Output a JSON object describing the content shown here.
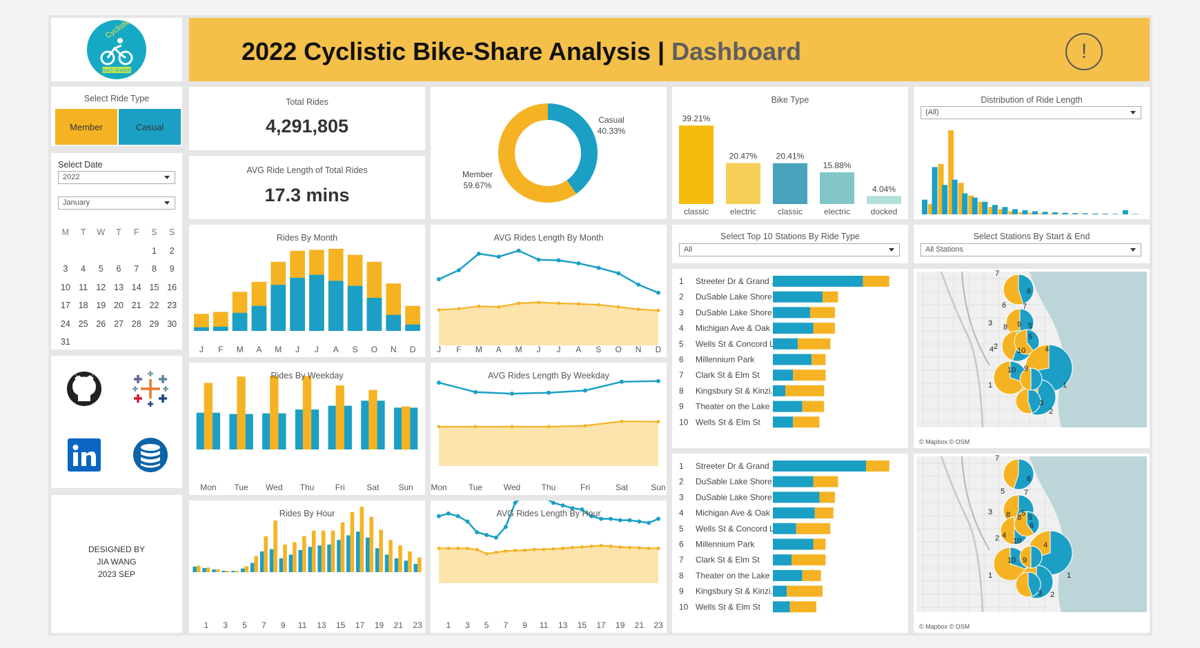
{
  "header": {
    "title": "2022 Cyclistic Bike-Share Analysis",
    "separator": "|",
    "subtitle": "Dashboard",
    "info_glyph": "!",
    "logo_text_top": "Cyclistic",
    "logo_text_bottom": "BIKE-SHARE",
    "logo_icon": "bicycle-icon"
  },
  "colors": {
    "member": "#f5b324",
    "casual": "#1b9fc5",
    "header_bg": "#f5c04a",
    "area_fill": "#fde4ad"
  },
  "filters": {
    "ride_type_title": "Select Ride Type",
    "member_label": "Member",
    "casual_label": "Casual",
    "date_title": "Select Date",
    "year_value": "2022",
    "month_value": "January",
    "bike_length_filter": "(All)",
    "stations_ride_type_title": "Select Top 10 Stations By Ride Type",
    "stations_ride_type_value": "All",
    "stations_start_end_title": "Select Stations By Start & End",
    "stations_start_end_value": "All Stations"
  },
  "calendar": {
    "weekdays": [
      "M",
      "T",
      "W",
      "T",
      "F",
      "S",
      "S"
    ],
    "weeks": [
      [
        "",
        "",
        "",
        "",
        "",
        "1",
        "2"
      ],
      [
        "3",
        "4",
        "5",
        "6",
        "7",
        "8",
        "9"
      ],
      [
        "10",
        "11",
        "12",
        "13",
        "14",
        "15",
        "16"
      ],
      [
        "17",
        "18",
        "19",
        "20",
        "21",
        "22",
        "23"
      ],
      [
        "24",
        "25",
        "26",
        "27",
        "28",
        "29",
        "30"
      ],
      [
        "31",
        "",
        "",
        "",
        "",
        "",
        ""
      ]
    ]
  },
  "kpis": {
    "total_rides_label": "Total Rides",
    "total_rides_value": "4,291,805",
    "avg_length_label": "AVG Ride Length of Total Rides",
    "avg_length_value": "17.3 mins"
  },
  "social_icons": [
    "github-icon",
    "tableau-icon",
    "linkedin-icon",
    "database-icon"
  ],
  "credits": {
    "line1": "DESIGNED BY",
    "line2": "JIA WANG",
    "line3": "2023 SEP"
  },
  "chart_data": [
    {
      "id": "split",
      "type": "pie",
      "title": "",
      "slices": [
        {
          "name": "Casual",
          "value": 40.33,
          "label": "40.33%"
        },
        {
          "name": "Member",
          "value": 59.67,
          "label": "59.67%"
        }
      ]
    },
    {
      "id": "bike_type",
      "type": "bar",
      "title": "Bike Type",
      "categories": [
        "classic",
        "electric",
        "classic",
        "electric",
        "docked"
      ],
      "values": [
        39.21,
        20.47,
        20.41,
        15.88,
        4.04
      ],
      "labels": [
        "39.21%",
        "20.47%",
        "20.41%",
        "15.88%",
        "4.04%"
      ],
      "colors": [
        "#f5bb0d",
        "#f5cf57",
        "#4aa3bd",
        "#82c6c8",
        "#b3dfdc"
      ]
    },
    {
      "id": "ride_length_dist",
      "type": "bar",
      "title": "Distribution of Ride Length",
      "member": [
        10,
        48,
        80,
        30,
        18,
        12,
        7,
        5,
        3,
        2,
        1.5,
        1,
        0.6,
        0.5,
        0.4,
        0.3,
        0.2,
        0.2,
        0.2,
        0.1,
        0.1,
        0.1
      ],
      "casual": [
        14,
        45,
        28,
        33,
        20,
        16,
        12,
        9,
        7,
        5,
        4,
        3,
        2.5,
        2,
        1.5,
        1.2,
        1,
        0.8,
        0.7,
        0.5,
        4,
        0.4
      ]
    },
    {
      "id": "rides_month",
      "type": "bar",
      "title": "Rides By Month",
      "categories": [
        "J",
        "F",
        "M",
        "A",
        "M",
        "J",
        "J",
        "A",
        "S",
        "O",
        "N",
        "D"
      ],
      "series": [
        {
          "name": "Casual",
          "values": [
            18,
            21,
            90,
            125,
            230,
            265,
            280,
            250,
            225,
            165,
            80,
            32
          ]
        },
        {
          "name": "Member",
          "values": [
            85,
            95,
            195,
            245,
            345,
            400,
            405,
            410,
            380,
            345,
            237,
            125
          ]
        }
      ],
      "ylim": [
        0,
        420
      ]
    },
    {
      "id": "avg_month",
      "type": "line",
      "title": "AVG Rides Length By Month",
      "categories": [
        "J",
        "F",
        "M",
        "A",
        "M",
        "J",
        "J",
        "A",
        "S",
        "O",
        "N",
        "D"
      ],
      "series": [
        {
          "name": "Casual",
          "values": [
            22,
            25,
            30.5,
            29.5,
            31.5,
            28.5,
            28.3,
            27.3,
            25.8,
            24,
            20.2,
            17.5
          ]
        },
        {
          "name": "Member",
          "values": [
            11.8,
            12.2,
            13,
            12.8,
            14,
            14.3,
            14,
            13.8,
            13.5,
            12.8,
            12,
            11.6
          ]
        }
      ],
      "ylim": [
        0,
        36
      ]
    },
    {
      "id": "rides_weekday",
      "type": "bar",
      "title": "Rides By Weekday",
      "categories": [
        "Mon",
        "Tue",
        "Wed",
        "Thu",
        "Fri",
        "Sat",
        "Sun"
      ],
      "series": [
        {
          "name": "Casual",
          "values": [
            290,
            280,
            285,
            315,
            345,
            385,
            330
          ]
        },
        {
          "name": "Member",
          "values": [
            525,
            575,
            580,
            580,
            505,
            470,
            340
          ]
        }
      ],
      "ylim": [
        0,
        620
      ]
    },
    {
      "id": "avg_weekday",
      "type": "line",
      "title": "AVG Rides Length By Weekday",
      "categories": [
        "Mon",
        "Tue",
        "Wed",
        "Thu",
        "Fri",
        "Sat",
        "Sun"
      ],
      "series": [
        {
          "name": "Casual",
          "values": [
            26.5,
            23.5,
            23,
            23.3,
            24,
            26.8,
            27
          ]
        },
        {
          "name": "Member",
          "values": [
            12.5,
            12.5,
            12.5,
            12.5,
            12.8,
            14.2,
            14.1
          ]
        }
      ],
      "ylim": [
        0,
        32
      ]
    },
    {
      "id": "rides_hour",
      "type": "bar",
      "title": "Rides By Hour",
      "categories": [
        "0",
        "1",
        "2",
        "3",
        "4",
        "5",
        "6",
        "7",
        "8",
        "9",
        "10",
        "11",
        "12",
        "13",
        "14",
        "15",
        "16",
        "17",
        "18",
        "19",
        "20",
        "21",
        "22",
        "23"
      ],
      "tick_labels": [
        "1",
        "3",
        "5",
        "7",
        "9",
        "11",
        "13",
        "15",
        "17",
        "19",
        "21",
        "23"
      ],
      "series": [
        {
          "name": "Casual",
          "values": [
            12,
            9,
            6,
            3,
            3,
            8,
            20,
            45,
            50,
            30,
            38,
            48,
            55,
            58,
            60,
            70,
            80,
            88,
            75,
            52,
            38,
            30,
            25,
            18
          ]
        },
        {
          "name": "Member",
          "values": [
            14,
            10,
            6,
            3,
            3,
            13,
            35,
            78,
            112,
            60,
            65,
            78,
            90,
            90,
            90,
            108,
            130,
            142,
            120,
            92,
            70,
            58,
            45,
            32
          ]
        }
      ],
      "ylim": [
        0,
        160
      ]
    },
    {
      "id": "avg_hour",
      "type": "line",
      "title": "AVG Rides Length By Hour",
      "categories": [
        "0",
        "1",
        "2",
        "3",
        "4",
        "5",
        "6",
        "7",
        "8",
        "9",
        "10",
        "11",
        "12",
        "13",
        "14",
        "15",
        "16",
        "17",
        "18",
        "19",
        "20",
        "21",
        "22",
        "23"
      ],
      "tick_labels": [
        "1",
        "3",
        "5",
        "7",
        "9",
        "11",
        "13",
        "15",
        "17",
        "19",
        "21",
        "23"
      ],
      "series": [
        {
          "name": "Casual",
          "values": [
            25,
            26,
            25,
            23,
            19,
            18,
            17,
            21,
            30,
            33,
            33,
            32,
            30,
            29,
            28,
            27.5,
            25,
            24,
            24,
            23.5,
            23.5,
            23,
            22.5,
            24
          ]
        },
        {
          "name": "Member",
          "values": [
            13,
            13,
            13,
            13,
            12.5,
            11,
            11.5,
            12,
            12.2,
            12.3,
            12.6,
            12.6,
            12.8,
            13,
            13.3,
            13.5,
            13.8,
            14,
            13.8,
            13.5,
            13.3,
            13.2,
            13,
            13
          ]
        }
      ],
      "ylim": [
        0,
        36
      ]
    },
    {
      "id": "top_start_stations",
      "type": "bar",
      "title": "",
      "ranks": [
        "1",
        "2",
        "3",
        "4",
        "5",
        "6",
        "7",
        "8",
        "9",
        "10"
      ],
      "categories": [
        "Streeter Dr & Grand ..",
        "DuSable Lake Shore ..",
        "DuSable Lake Shore ..",
        "Michigan Ave & Oak ..",
        "Wells St & Concord Ln",
        "Millennium Park",
        "Clark St & Elm St",
        "Kingsbury St & Kinzi..",
        "Theater on the Lake",
        "Wells St & Elm St"
      ],
      "series": [
        {
          "name": "Casual",
          "values": [
            58,
            32,
            24,
            26,
            16,
            25,
            13,
            8,
            19,
            13
          ]
        },
        {
          "name": "Member",
          "values": [
            17,
            10,
            16,
            14,
            21,
            9,
            21,
            25,
            14,
            17
          ]
        }
      ]
    },
    {
      "id": "top_end_stations",
      "type": "bar",
      "title": "",
      "ranks": [
        "1",
        "2",
        "3",
        "4",
        "5",
        "6",
        "7",
        "8",
        "9",
        "10"
      ],
      "categories": [
        "Streeter Dr & Grand ..",
        "DuSable Lake Shore ..",
        "DuSable Lake Shore ..",
        "Michigan Ave & Oak ..",
        "Wells St & Concord Ln",
        "Millennium Park",
        "Clark St & Elm St",
        "Theater on the Lake",
        "Kingsbury St & Kinzi..",
        "Wells St & Elm St"
      ],
      "series": [
        {
          "name": "Casual",
          "values": [
            60,
            26,
            30,
            27,
            15,
            26,
            12,
            19,
            9,
            11
          ]
        },
        {
          "name": "Member",
          "values": [
            15,
            16,
            10,
            12,
            22,
            8,
            22,
            12,
            23,
            17
          ]
        }
      ]
    }
  ],
  "maps": {
    "attribution": "© Mapbox  © OSM",
    "start_labels": [
      "7",
      "6",
      "6",
      "7",
      "3",
      "9",
      "8",
      "5",
      "5",
      "4",
      "2",
      "10",
      "4",
      "10",
      "9",
      "1",
      "1",
      "3",
      "2"
    ],
    "end_labels": [
      "7",
      "6",
      "5",
      "7",
      "3",
      "8",
      "5",
      "8",
      "5",
      "6",
      "4",
      "2",
      "10",
      "4",
      "10",
      "9",
      "1",
      "1",
      "3",
      "2"
    ]
  }
}
